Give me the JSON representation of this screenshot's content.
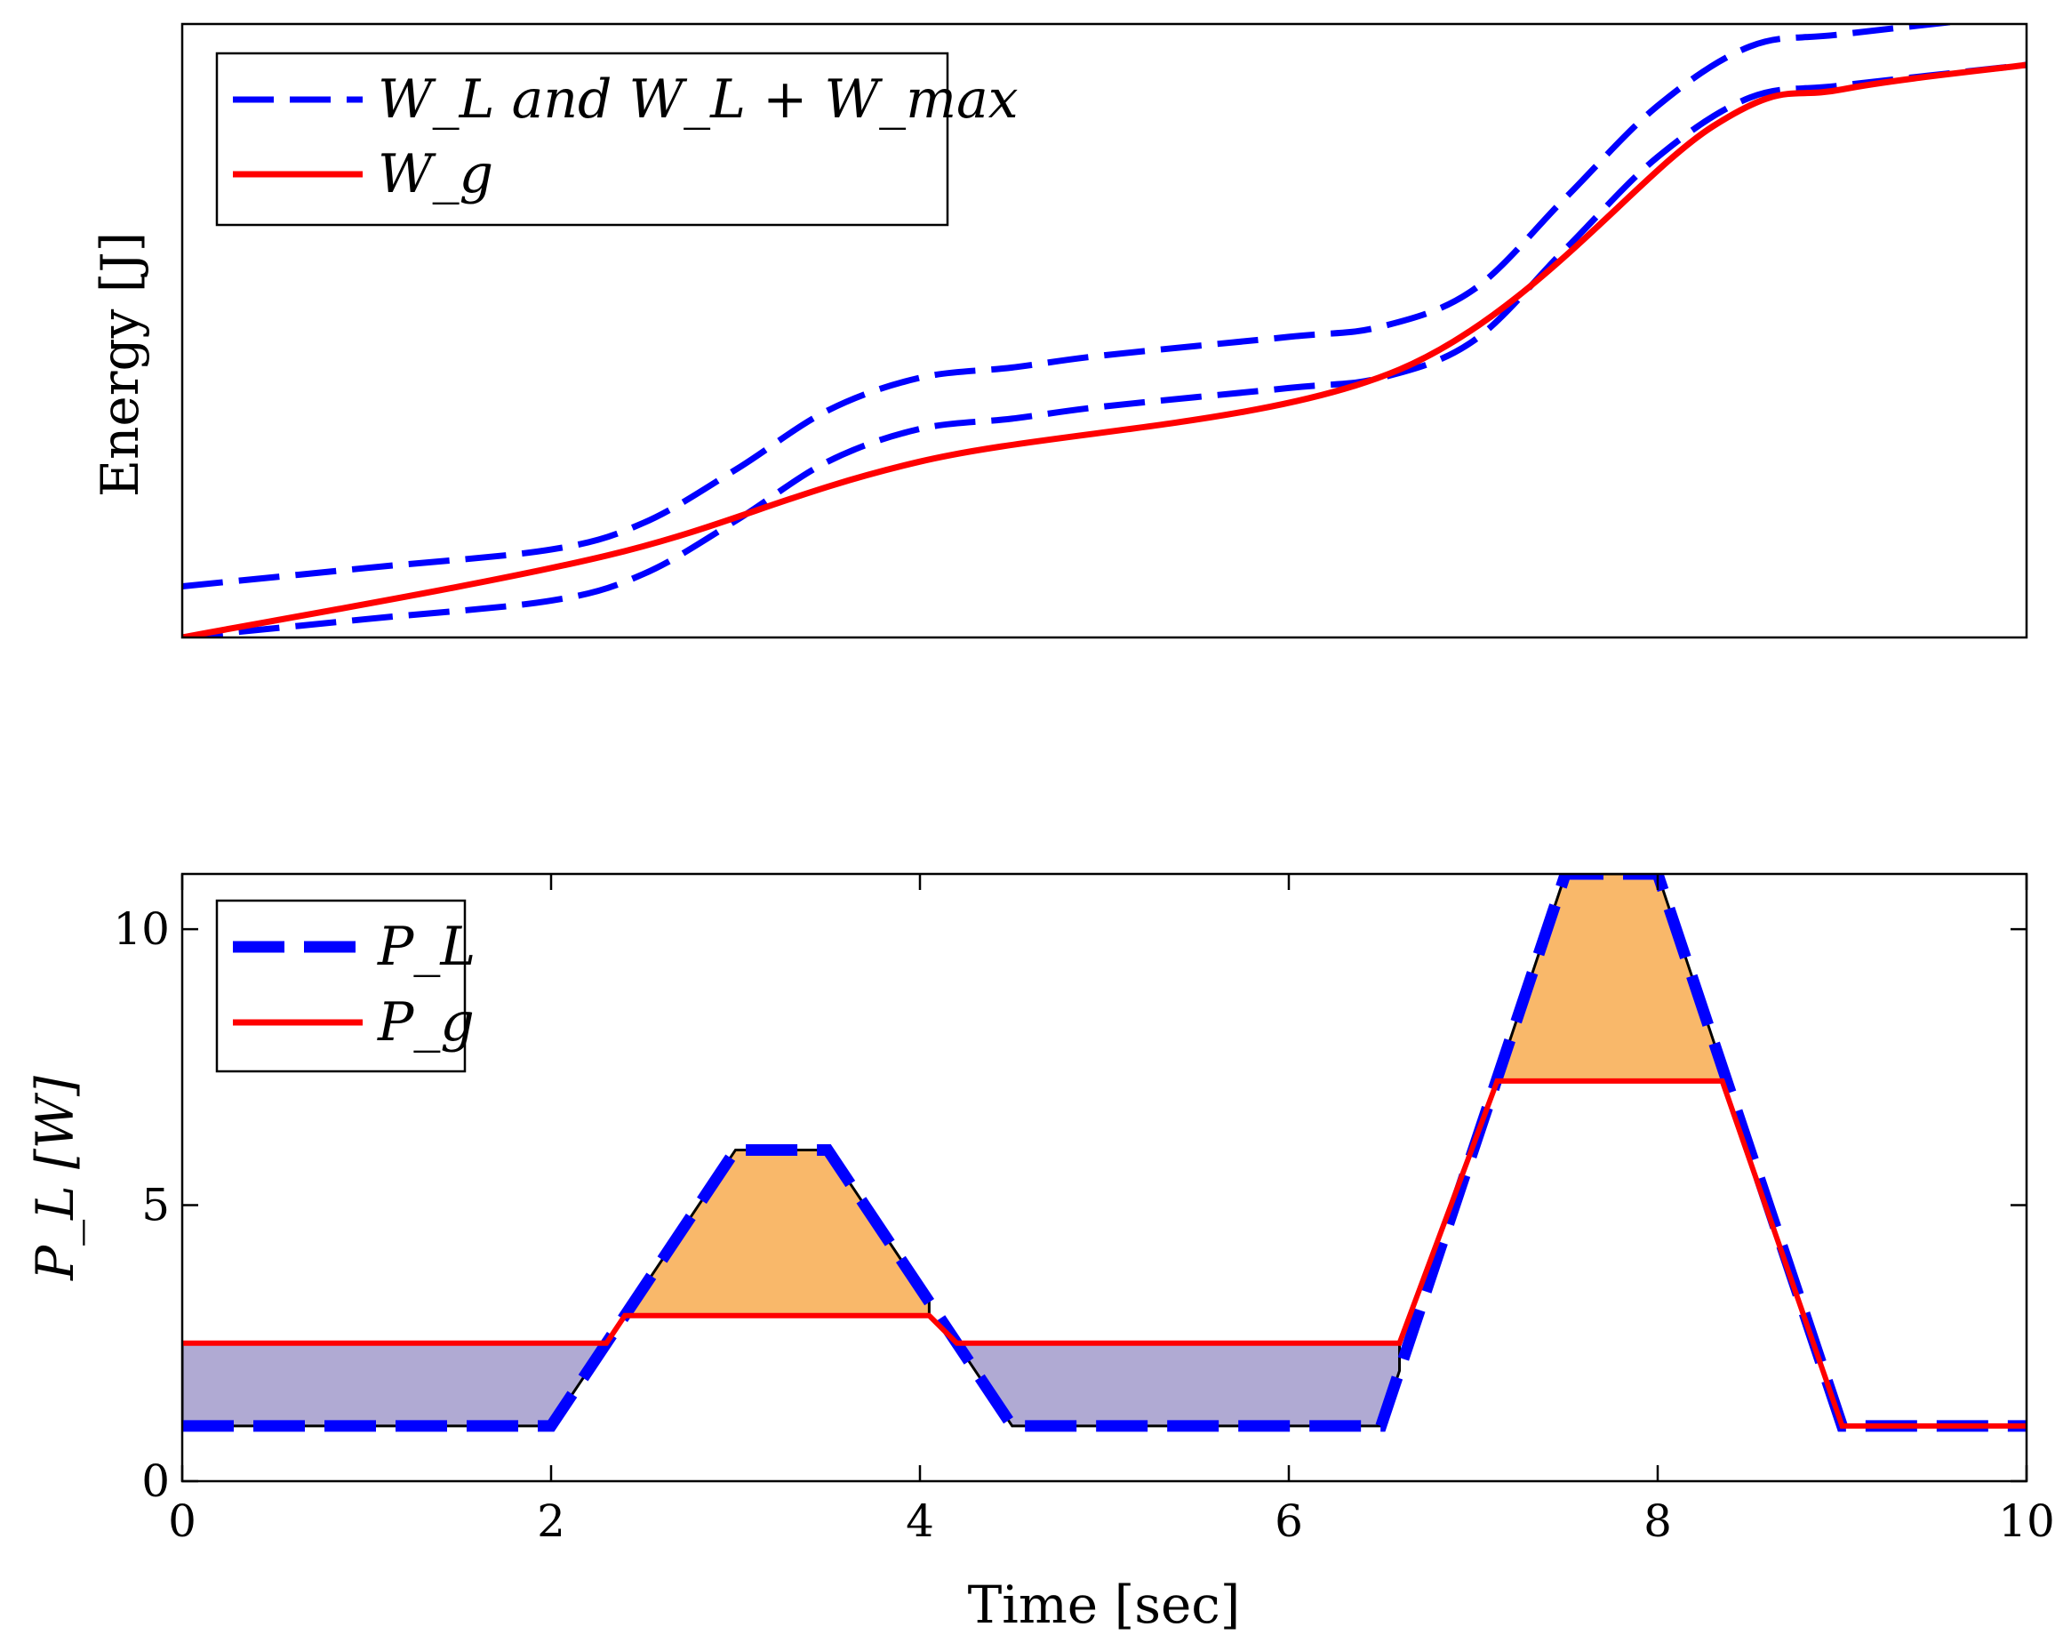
{
  "chart_data": [
    {
      "type": "line",
      "panel": "top",
      "title": "",
      "xlabel": "",
      "ylabel": "Energy [J]",
      "xlim": [
        0,
        10
      ],
      "ylim": [
        0,
        30
      ],
      "xticks_visible": false,
      "yticks_visible": false,
      "legend_position": "top-left",
      "series": [
        {
          "name": "W_L and W_L + W_max",
          "legend_label": "W_L and W_L + W_max",
          "style": "dashed",
          "color": "#0000ff",
          "x": [
            0,
            1,
            2,
            2.5,
            3,
            3.5,
            4,
            4.5,
            5,
            6,
            6.5,
            7,
            7.5,
            8,
            8.5,
            9,
            10
          ],
          "curves": [
            {
              "name": "W_L",
              "y": [
                0,
                0.9,
                1.8,
                3.1,
                5.7,
                8.6,
                10.2,
                10.7,
                11.3,
                12.2,
                12.7,
                14.5,
                19,
                23.5,
                26.4,
                27,
                28
              ]
            },
            {
              "name": "W_L + W_max",
              "y": [
                2.5,
                3.4,
                4.3,
                5.6,
                8.2,
                11.1,
                12.7,
                13.2,
                13.8,
                14.7,
                15.2,
                17,
                21.5,
                26,
                28.9,
                29.5,
                30.5
              ]
            }
          ]
        },
        {
          "name": "W_g",
          "legend_label": "W_g",
          "style": "solid",
          "color": "#ff0000",
          "x": [
            0,
            2.3,
            4,
            6.6,
            8.3,
            9,
            10
          ],
          "y": [
            0,
            4,
            8.6,
            13.1,
            25,
            26.8,
            28
          ]
        }
      ]
    },
    {
      "type": "line",
      "panel": "bottom",
      "title": "",
      "xlabel": "Time [sec]",
      "ylabel": "P_L [W]",
      "xlim": [
        0,
        10
      ],
      "ylim": [
        0,
        11
      ],
      "x_ticks": [
        0,
        2,
        4,
        6,
        8,
        10
      ],
      "x_tick_labels": [
        "0",
        "2",
        "4",
        "6",
        "8",
        "10"
      ],
      "y_ticks": [
        0,
        5,
        10
      ],
      "y_tick_labels": [
        "0",
        "5",
        "10"
      ],
      "legend_position": "top-left",
      "series": [
        {
          "name": "P_L",
          "legend_label": "P_L",
          "style": "dashed-thick",
          "color": "#0000ff",
          "x": [
            0,
            2,
            3,
            3.5,
            4.5,
            6.5,
            7.5,
            8,
            9,
            10
          ],
          "y": [
            1,
            1,
            6,
            6,
            1,
            1,
            11,
            11,
            1,
            1
          ]
        },
        {
          "name": "P_g",
          "legend_label": "P_g",
          "style": "solid",
          "color": "#ff0000",
          "x": [
            0,
            2.3,
            2.4,
            4.05,
            4.2,
            6.6,
            7.13,
            8.35,
            9,
            10
          ],
          "y": [
            2.5,
            2.5,
            3,
            3,
            2.5,
            2.5,
            7.25,
            7.25,
            1,
            1
          ]
        }
      ],
      "fills": [
        {
          "name": "discharge-region-1",
          "color": "#f9b86a",
          "x_range": [
            2.4,
            4.05
          ],
          "between": [
            "P_g",
            "P_L"
          ]
        },
        {
          "name": "discharge-region-2",
          "color": "#f9b86a",
          "x_range": [
            7.13,
            8.35
          ],
          "between": [
            "P_g",
            "P_L"
          ]
        },
        {
          "name": "charge-region-1",
          "color": "#b0aad3",
          "x_range": [
            0,
            2.3
          ],
          "between": [
            "P_L",
            "P_g"
          ]
        },
        {
          "name": "charge-region-2",
          "color": "#b0aad3",
          "x_range": [
            4.2,
            6.6
          ],
          "between": [
            "P_L",
            "P_g"
          ]
        }
      ]
    }
  ]
}
